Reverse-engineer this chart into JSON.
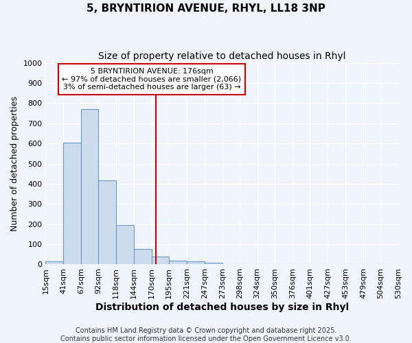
{
  "title_line1": "5, BRYNTIRION AVENUE, RHYL, LL18 3NP",
  "title_line2": "Size of property relative to detached houses in Rhyl",
  "xlabel": "Distribution of detached houses by size in Rhyl",
  "ylabel": "Number of detached properties",
  "bin_edges": [
    15,
    41,
    67,
    92,
    118,
    144,
    170,
    195,
    221,
    247,
    273,
    298,
    324,
    350,
    376,
    401,
    427,
    453,
    479,
    504,
    530
  ],
  "bar_heights": [
    15,
    605,
    770,
    415,
    195,
    78,
    40,
    20,
    15,
    10,
    0,
    0,
    0,
    0,
    0,
    0,
    0,
    0,
    0,
    0
  ],
  "bar_color": "#cddcec",
  "bar_edge_color": "#6699cc",
  "vline_x": 176,
  "vline_color": "#cc0000",
  "annotation_line1": "5 BRYNTIRION AVENUE: 176sqm",
  "annotation_line2": "← 97% of detached houses are smaller (2,066)",
  "annotation_line3": "3% of semi-detached houses are larger (63) →",
  "annotation_box_color": "#ffffff",
  "annotation_box_edge_color": "#cc0000",
  "ylim": [
    0,
    1000
  ],
  "yticks": [
    0,
    100,
    200,
    300,
    400,
    500,
    600,
    700,
    800,
    900,
    1000
  ],
  "bg_color": "#f0f4fc",
  "plot_bg_color": "#f0f4fc",
  "grid_color": "#ffffff",
  "footer_text": "Contains HM Land Registry data © Crown copyright and database right 2025.\nContains public sector information licensed under the Open Government Licence v3.0.",
  "title_fontsize": 11,
  "subtitle_fontsize": 10,
  "axis_label_fontsize": 9,
  "tick_fontsize": 8,
  "annotation_fontsize": 8,
  "footer_fontsize": 7
}
